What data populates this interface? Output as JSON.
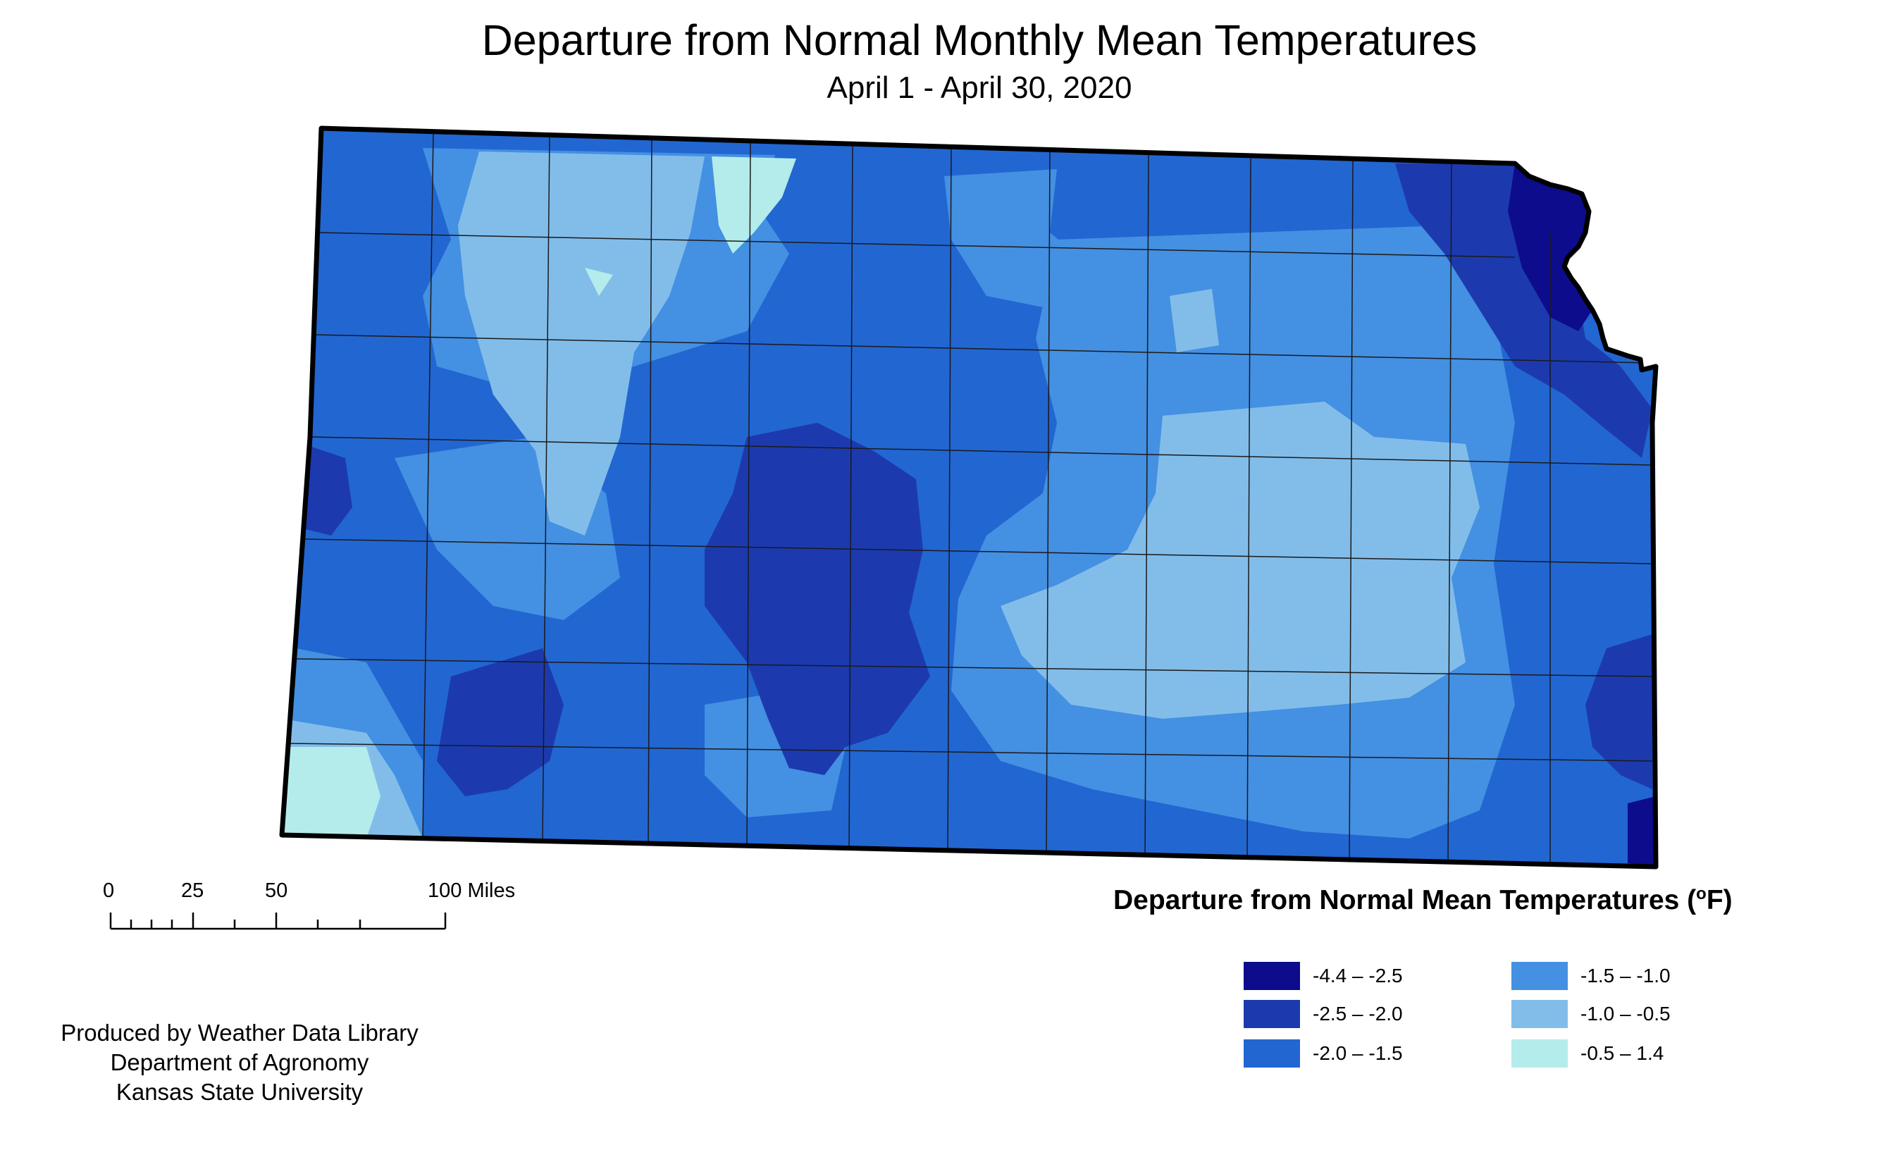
{
  "title": "Departure from Normal Monthly Mean Temperatures",
  "subtitle": "April 1 - April 30, 2020",
  "scale_bar": {
    "labels": [
      "0",
      "25",
      "50",
      "100 Miles"
    ]
  },
  "credits": {
    "line1": "Produced by Weather Data Library",
    "line2": "Department of Agronomy",
    "line3": "Kansas State University"
  },
  "legend": {
    "title": "Departure from Normal Mean Temperatures (",
    "unit_sup": "o",
    "unit_end": "F)",
    "classes": [
      {
        "label": "-4.4 – -2.5",
        "color": "#0c0c8c"
      },
      {
        "label": "-2.5 – -2.0",
        "color": "#1c3aae"
      },
      {
        "label": "-2.0 – -1.5",
        "color": "#2266d2"
      },
      {
        "label": "-1.5 – -1.0",
        "color": "#4490e2"
      },
      {
        "label": "-1.0 – -0.5",
        "color": "#82bdea"
      },
      {
        "label": "-0.5 – 1.4",
        "color": "#b4eceb"
      }
    ]
  },
  "colors": {
    "background": "#ffffff",
    "state_outline": "#000000",
    "county_lines": "#1a1a1a"
  }
}
